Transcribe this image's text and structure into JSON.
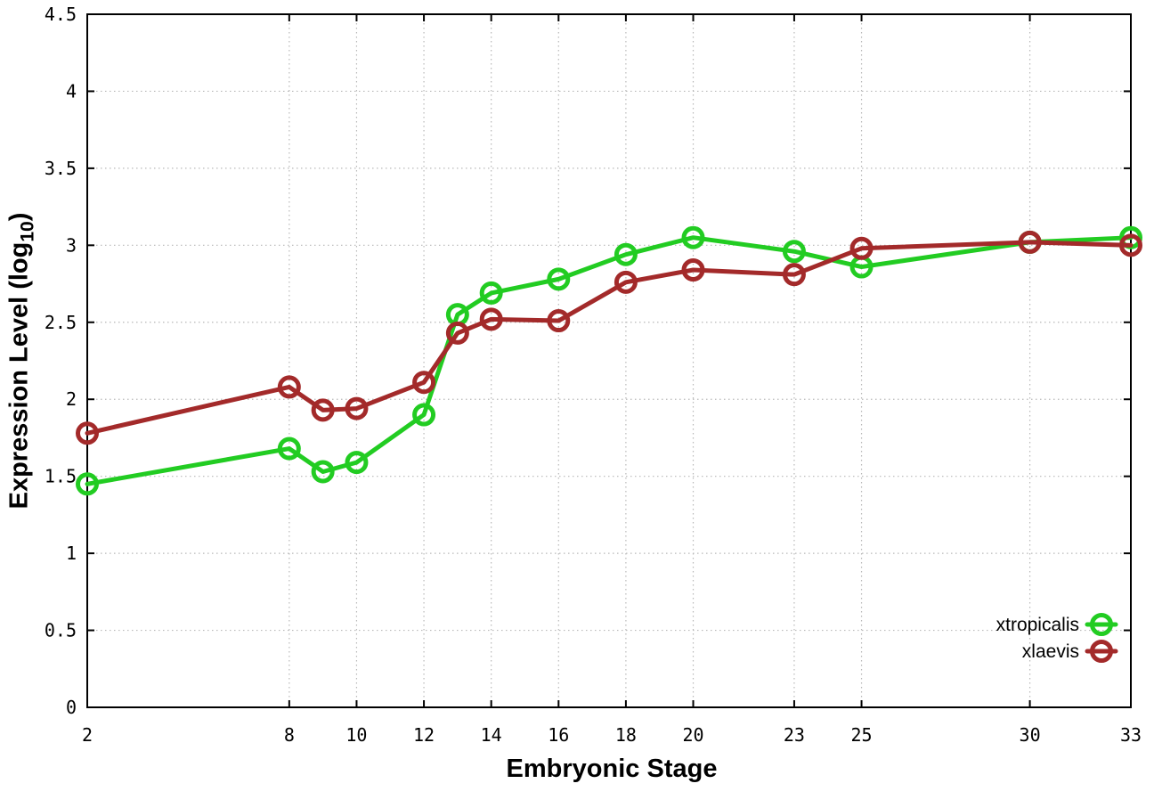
{
  "figure": {
    "background": "#ffffff",
    "axis_color": "#000000",
    "grid_color": "#b8b8b8"
  },
  "chart_data": {
    "type": "line",
    "title": "",
    "xlabel": "Embryonic Stage",
    "ylabel": "Expression Level (log10)",
    "ylabel_parts": {
      "main": "Expression Level (log",
      "sub": "10",
      "close": ")"
    },
    "xlim": [
      2,
      33
    ],
    "ylim": [
      0,
      4.5
    ],
    "x_tick_values": [
      2,
      8,
      10,
      12,
      14,
      16,
      18,
      20,
      23,
      25,
      30,
      33
    ],
    "x_tick_labels": [
      "2",
      "8",
      "10",
      "12",
      "14",
      "16",
      "18",
      "20",
      "23",
      "25",
      "30",
      "33"
    ],
    "y_tick_values": [
      0,
      0.5,
      1,
      1.5,
      2,
      2.5,
      3,
      3.5,
      4,
      4.5
    ],
    "y_tick_labels": [
      "0",
      "0.5",
      "1",
      "1.5",
      "2",
      "2.5",
      "3",
      "3.5",
      "4",
      "4.5"
    ],
    "grid": "dotted",
    "marker": "open-circle",
    "legend_position": "bottom-right",
    "x": [
      2,
      8,
      9,
      10,
      12,
      13,
      14,
      16,
      18,
      20,
      23,
      25,
      30,
      33
    ],
    "series": [
      {
        "name": "xtropicalis",
        "color": "#22cc22",
        "values": [
          1.45,
          1.68,
          1.53,
          1.59,
          1.9,
          2.55,
          2.69,
          2.78,
          2.94,
          3.05,
          2.96,
          2.86,
          3.02,
          3.05
        ]
      },
      {
        "name": "xlaevis",
        "color": "#a32a2a",
        "values": [
          1.78,
          2.08,
          1.93,
          1.94,
          2.11,
          2.43,
          2.52,
          2.51,
          2.76,
          2.84,
          2.81,
          2.98,
          3.02,
          3.0
        ]
      }
    ]
  }
}
